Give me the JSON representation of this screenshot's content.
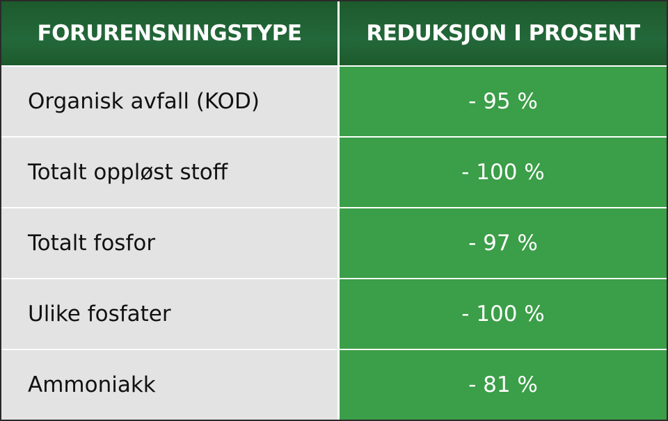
{
  "table": {
    "headers": [
      "FORURENSNINGSTYPE",
      "REDUKSJON I PROSENT"
    ],
    "rows": [
      [
        "Organisk avfall (KOD)",
        "- 95 %"
      ],
      [
        "Totalt oppløst stoff",
        "- 100 %"
      ],
      [
        "Totalt fosfor",
        "- 97 %"
      ],
      [
        "Ulike fosfater",
        "- 100 %"
      ],
      [
        "Ammoniakk",
        "- 81 %"
      ]
    ]
  }
}
